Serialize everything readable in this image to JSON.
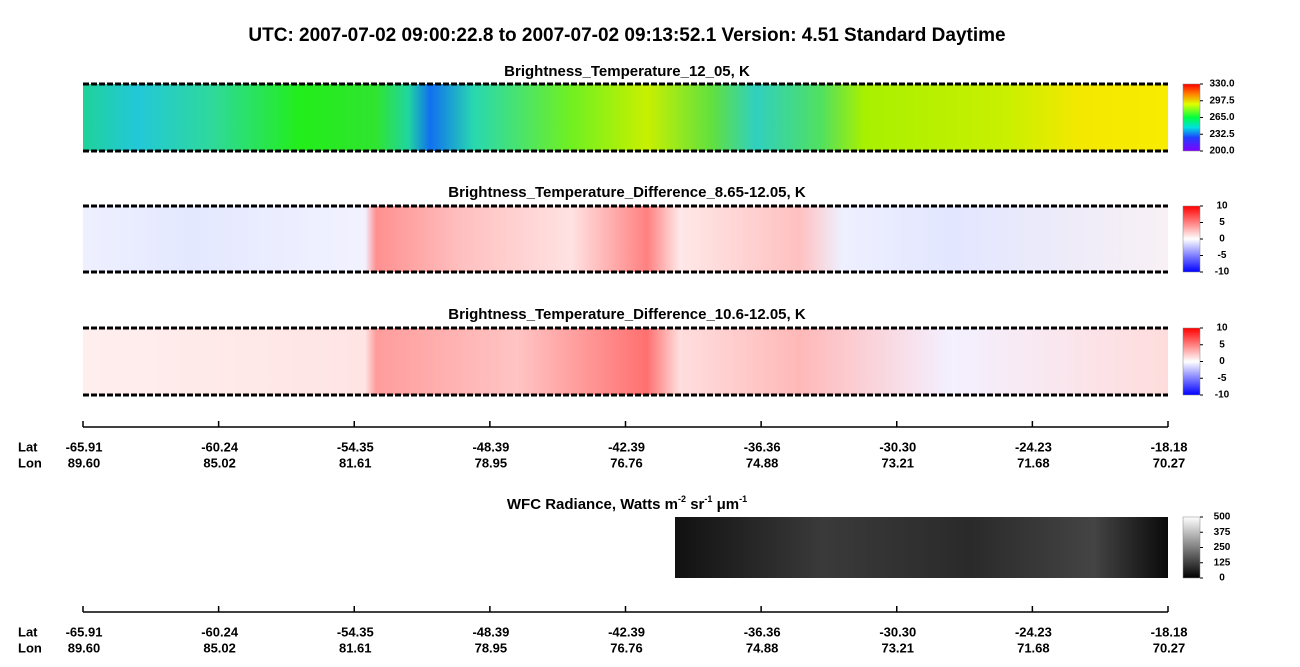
{
  "title": "UTC:  2007-07-02   09:00:22.8  to  2007-07-02   09:13:52.1    Version: 4.51  Standard Daytime",
  "panels": [
    {
      "title": "Brightness_Temperature_12_05, K",
      "colorbar": {
        "range": [
          200,
          330
        ],
        "ticks": [
          {
            "value": 330,
            "label": "330.0"
          },
          {
            "value": 297.5,
            "label": "297.5"
          },
          {
            "value": 265,
            "label": "265.0"
          },
          {
            "value": 232.5,
            "label": "232.5"
          },
          {
            "value": 200,
            "label": "200.0"
          }
        ]
      }
    },
    {
      "title": "Brightness_Temperature_Difference_8.65-12.05, K",
      "colorbar": {
        "range": [
          -10,
          10
        ],
        "ticks": [
          10,
          5,
          0,
          -5,
          -10
        ]
      }
    },
    {
      "title": "Brightness_Temperature_Difference_10.6-12.05, K",
      "colorbar": {
        "range": [
          -10,
          10
        ],
        "ticks": [
          10,
          5,
          0,
          -5,
          -10
        ]
      }
    },
    {
      "title": [
        "WFC Radiance, Watts m",
        "-2",
        " sr",
        "-1",
        " μm",
        "-1"
      ],
      "colorbar": {
        "range": [
          0,
          500
        ],
        "ticks": [
          500,
          375,
          250,
          125,
          0
        ]
      }
    }
  ],
  "axis": {
    "lat_label": "Lat",
    "lon_label": "Lon",
    "ticks": [
      {
        "lat": "-65.91",
        "lon": "89.60"
      },
      {
        "lat": "-60.24",
        "lon": "85.02"
      },
      {
        "lat": "-54.35",
        "lon": "81.61"
      },
      {
        "lat": "-48.39",
        "lon": "78.95"
      },
      {
        "lat": "-42.39",
        "lon": "76.76"
      },
      {
        "lat": "-36.36",
        "lon": "74.88"
      },
      {
        "lat": "-30.30",
        "lon": "73.21"
      },
      {
        "lat": "-24.23",
        "lon": "71.68"
      },
      {
        "lat": "-18.18",
        "lon": "70.27"
      }
    ]
  }
}
